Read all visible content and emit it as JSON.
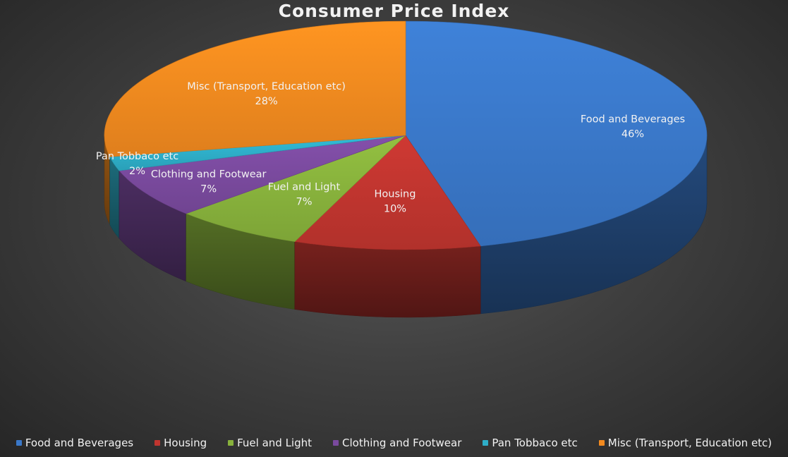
{
  "chart_data": {
    "type": "pie",
    "title": "Consumer Price Index",
    "three_d": true,
    "legend_position": "bottom",
    "slices": [
      {
        "label": "Food and Beverages",
        "value": 46,
        "display": "46%",
        "color": "#3a78c9"
      },
      {
        "label": "Housing",
        "value": 10,
        "display": "10%",
        "color": "#c0352f"
      },
      {
        "label": "Fuel and Light",
        "value": 7,
        "display": "7%",
        "color": "#88b23c"
      },
      {
        "label": "Clothing and Footwear",
        "value": 7,
        "display": "7%",
        "color": "#7a4a9e"
      },
      {
        "label": "Pan Tobbaco etc",
        "value": 2,
        "display": "2%",
        "color": "#2eaec8"
      },
      {
        "label": "Misc (Transport, Education etc)",
        "value": 28,
        "display": "28%",
        "color": "#f28a1f"
      }
    ]
  }
}
